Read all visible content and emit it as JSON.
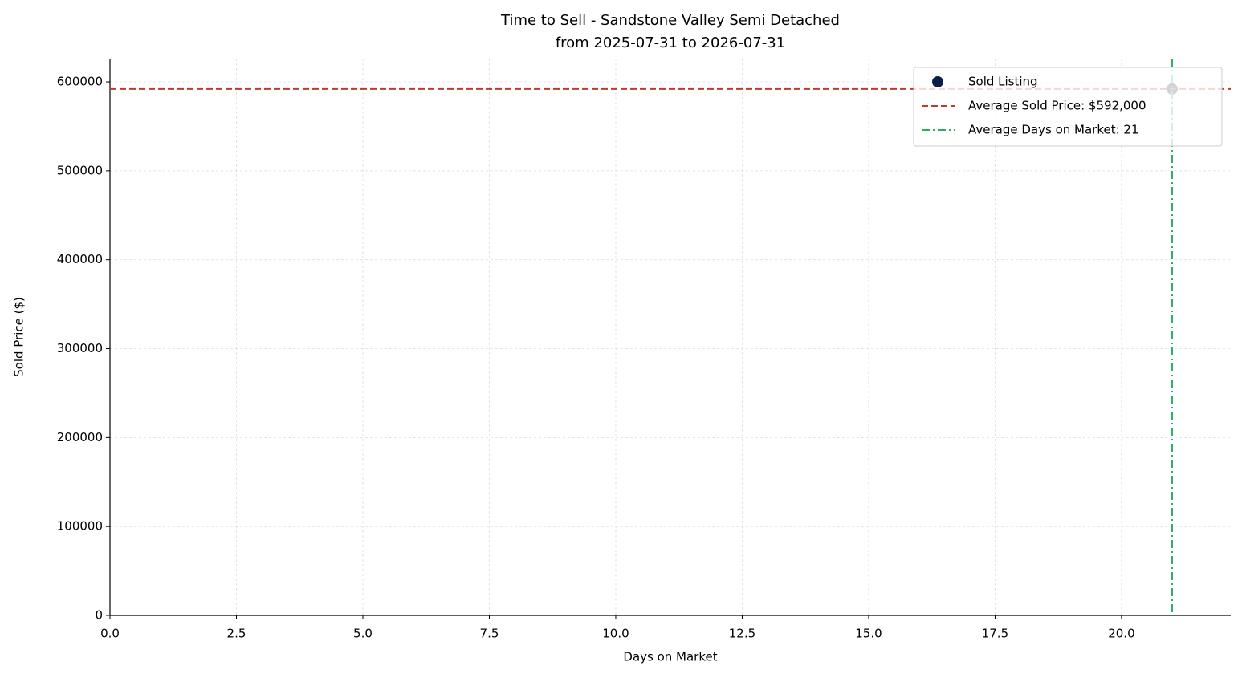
{
  "chart_data": {
    "type": "scatter",
    "title": "Time to Sell - Sandstone Valley Semi Detached",
    "subtitle": "from 2025-07-31 to 2026-07-31",
    "x_label": "Days on Market",
    "y_label": "Sold Price ($)",
    "series": [
      {
        "name": "Sold Listing",
        "color": "#0b1f44",
        "x": [
          21
        ],
        "values": [
          592000
        ]
      }
    ],
    "hlines": [
      {
        "name": "Average Sold Price: $592,000",
        "color": "#c0392b",
        "value": 592000,
        "style": "dashed"
      }
    ],
    "vlines": [
      {
        "name": "Average Days on Market: 21",
        "color": "#27ae60",
        "value": 21,
        "style": "dashdot"
      }
    ],
    "xlim": [
      0,
      22.16
    ],
    "ylim": [
      0,
      626200
    ],
    "xticks": [
      {
        "value": 0,
        "label": "0.0"
      },
      2.5,
      {
        "value": 5,
        "label": "5.0"
      },
      7.5,
      {
        "value": 10,
        "label": "10.0"
      },
      12.5,
      {
        "value": 15,
        "label": "15.0"
      },
      17.5,
      {
        "value": 20,
        "label": "20.0"
      }
    ],
    "yticks": [
      0,
      100000,
      200000,
      300000,
      400000,
      500000,
      600000
    ],
    "grid": true,
    "legend": "upper right"
  }
}
